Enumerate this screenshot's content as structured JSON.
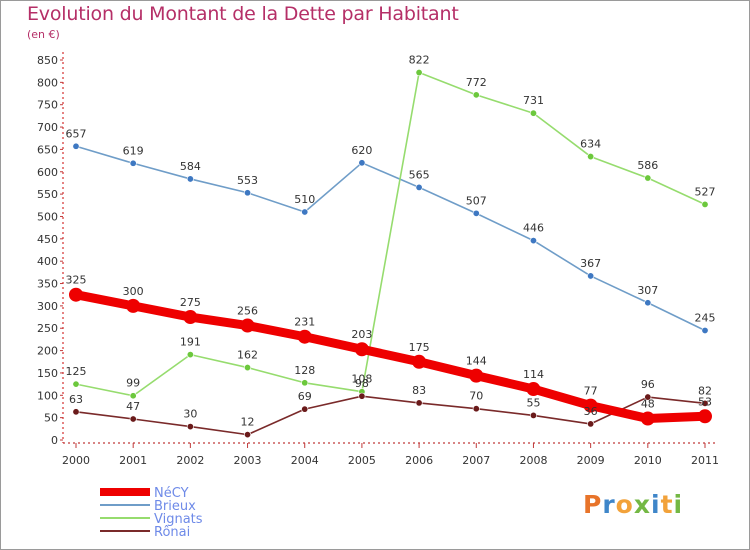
{
  "page": {
    "title": "Evolution du Montant de la Dette par Habitant",
    "subtitle": "(en €)",
    "logo_letters": [
      "P",
      "r",
      "o",
      "x",
      "i",
      "t",
      "i"
    ],
    "logo_colors": [
      "#e8742a",
      "#3f86c9",
      "#f2a23a",
      "#74b844",
      "#3f86c9",
      "#f2a23a",
      "#74b844"
    ]
  },
  "chart_data": {
    "type": "line",
    "title": "Evolution du Montant de la Dette par Habitant",
    "subtitle": "(en €)",
    "xlabel": "",
    "ylabel": "",
    "x": [
      "2000",
      "2001",
      "2002",
      "2003",
      "2004",
      "2005",
      "2006",
      "2007",
      "2008",
      "2009",
      "2010",
      "2011"
    ],
    "ylim": [
      0,
      850
    ],
    "yticks": [
      0,
      50,
      100,
      150,
      200,
      250,
      300,
      350,
      400,
      450,
      500,
      550,
      600,
      650,
      700,
      750,
      800,
      850
    ],
    "grid": false,
    "legend_position": "bottom-left",
    "series": [
      {
        "name": "NéCY",
        "color": "#ee0000",
        "marker_color": "#ee0000",
        "label_color": "#6e8ae8",
        "emphasis": true,
        "values": [
          325,
          300,
          275,
          256,
          231,
          203,
          175,
          144,
          114,
          77,
          48,
          53
        ]
      },
      {
        "name": "Brieux",
        "color": "#6f9dc8",
        "marker_color": "#3e78c2",
        "label_color": "#6e8ae8",
        "emphasis": false,
        "values": [
          657,
          619,
          584,
          553,
          510,
          620,
          565,
          507,
          446,
          367,
          307,
          245
        ]
      },
      {
        "name": "Vignats",
        "color": "#96dc6e",
        "marker_color": "#6cc83c",
        "label_color": "#6e8ae8",
        "emphasis": false,
        "values": [
          125,
          99,
          191,
          162,
          128,
          108,
          822,
          772,
          731,
          634,
          586,
          527
        ]
      },
      {
        "name": "Rônai",
        "color": "#7a2a2a",
        "marker_color": "#6a1a1a",
        "label_color": "#6e8ae8",
        "emphasis": false,
        "values": [
          63,
          47,
          30,
          12,
          69,
          98,
          83,
          70,
          55,
          36,
          96,
          82
        ]
      }
    ]
  }
}
